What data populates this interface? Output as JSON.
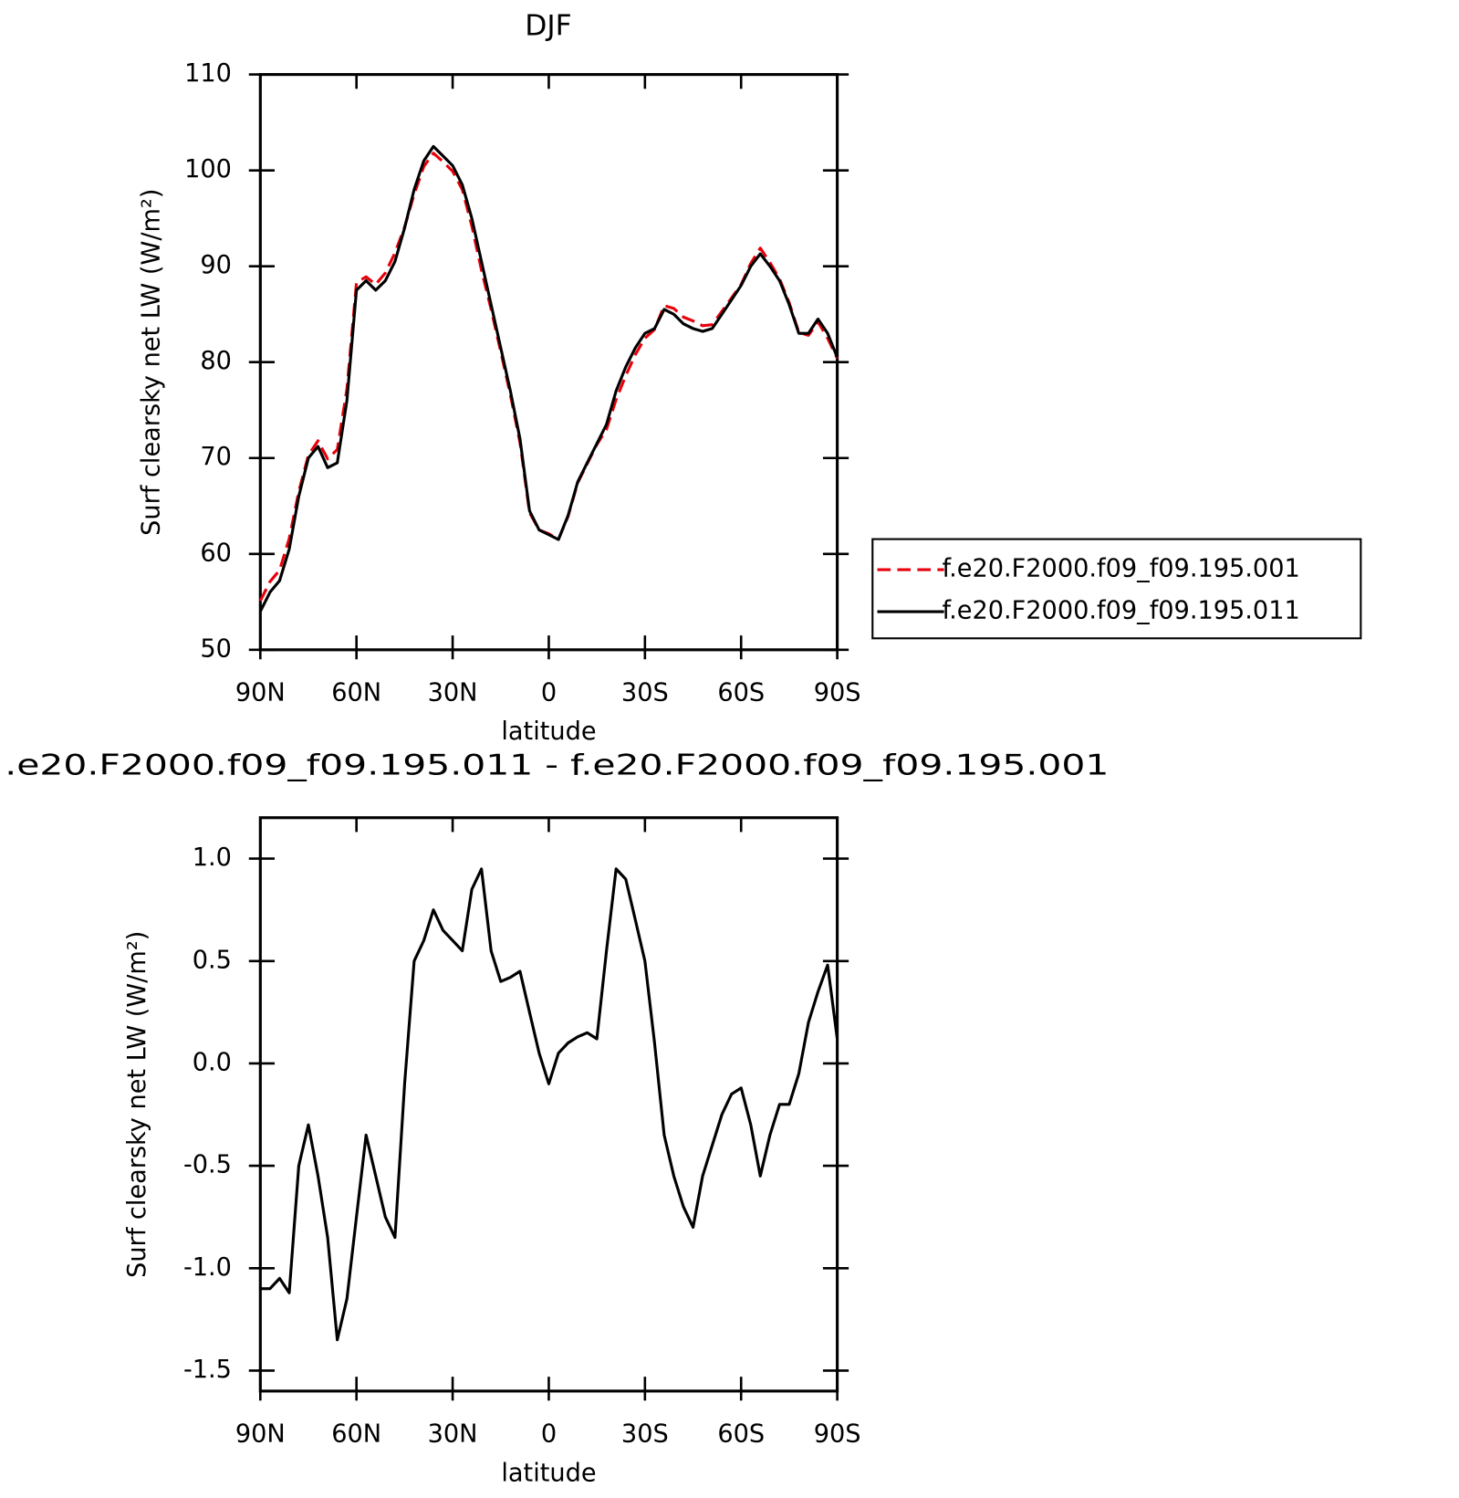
{
  "chart_data": [
    {
      "type": "line",
      "title": "DJF",
      "xlabel": "latitude",
      "ylabel": "Surf clearsky net LW (W/m²)",
      "x": [
        90,
        87,
        84,
        81,
        78,
        75,
        72,
        69,
        66,
        63,
        60,
        57,
        54,
        51,
        48,
        45,
        42,
        39,
        36,
        33,
        30,
        27,
        24,
        21,
        18,
        15,
        12,
        9,
        6,
        3,
        0,
        -3,
        -6,
        -9,
        -12,
        -15,
        -18,
        -21,
        -24,
        -27,
        -30,
        -33,
        -36,
        -39,
        -42,
        -45,
        -48,
        -51,
        -54,
        -57,
        -60,
        -63,
        -66,
        -69,
        -72,
        -75,
        -78,
        -81,
        -84,
        -87,
        -90
      ],
      "series": [
        {
          "name": "f.e20.F2000.f09_f09.195.001",
          "color": "#e8000b",
          "linestyle": "dashed",
          "values": [
            55.1,
            57.1,
            58.3,
            61.6,
            66.5,
            70.3,
            71.8,
            69.9,
            70.9,
            77.2,
            88.3,
            88.9,
            88.1,
            89.3,
            91.4,
            94.1,
            97.5,
            100.4,
            101.8,
            100.9,
            99.9,
            98.0,
            94.2,
            89.6,
            85.5,
            81.1,
            76.6,
            71.6,
            64.3,
            62.5,
            62.1,
            61.5,
            63.9,
            67.4,
            69.4,
            71.4,
            73.0,
            76.1,
            78.6,
            80.8,
            82.5,
            83.4,
            85.9,
            85.6,
            84.7,
            84.3,
            83.8,
            83.9,
            85.3,
            86.7,
            88.1,
            90.3,
            91.9,
            90.4,
            88.7,
            86.2,
            83.1,
            82.8,
            84.2,
            82.5,
            80.4
          ]
        },
        {
          "name": "f.e20.F2000.f09_f09.195.011",
          "color": "#000000",
          "linestyle": "solid",
          "values": [
            54,
            56,
            57.2,
            60.5,
            66,
            70,
            71.2,
            69,
            69.5,
            76,
            87.5,
            88.5,
            87.5,
            88.5,
            90.5,
            94,
            98,
            101,
            102.5,
            101.5,
            100.5,
            98.5,
            95,
            90.5,
            86,
            81.5,
            77,
            72,
            64.5,
            62.5,
            62,
            61.5,
            64,
            67.5,
            69.5,
            71.5,
            73.5,
            77,
            79.5,
            81.5,
            83,
            83.5,
            85.5,
            85,
            84,
            83.5,
            83.2,
            83.5,
            85,
            86.5,
            88,
            90,
            91.3,
            90,
            88.5,
            86,
            83,
            83,
            84.5,
            83,
            80.5
          ]
        }
      ],
      "xlim": [
        90,
        -90
      ],
      "xticks": [
        {
          "value": 90,
          "label": "90N"
        },
        {
          "value": 60,
          "label": "60N"
        },
        {
          "value": 30,
          "label": "30N"
        },
        0,
        {
          "value": -30,
          "label": "30S"
        },
        {
          "value": -60,
          "label": "60S"
        },
        {
          "value": -90,
          "label": "90S"
        }
      ],
      "ylim": [
        50,
        110
      ],
      "yticks": [
        50,
        60,
        70,
        80,
        90,
        100,
        110
      ],
      "legend": "right"
    },
    {
      "type": "line",
      "title": ".e20.F2000.f09_f09.195.011 - f.e20.F2000.f09_f09.195.001",
      "xlabel": "latitude",
      "ylabel": "Surf clearsky net LW (W/m²)",
      "x": [
        90,
        87,
        84,
        81,
        78,
        75,
        72,
        69,
        66,
        63,
        60,
        57,
        54,
        51,
        48,
        45,
        42,
        39,
        36,
        33,
        30,
        27,
        24,
        21,
        18,
        15,
        12,
        9,
        6,
        3,
        0,
        -3,
        -6,
        -9,
        -12,
        -15,
        -18,
        -21,
        -24,
        -27,
        -30,
        -33,
        -36,
        -39,
        -42,
        -45,
        -48,
        -51,
        -54,
        -57,
        -60,
        -63,
        -66,
        -69,
        -72,
        -75,
        -78,
        -81,
        -84,
        -87,
        -90
      ],
      "values": [
        -1.1,
        -1.1,
        -1.05,
        -1.12,
        -0.5,
        -0.3,
        -0.55,
        -0.85,
        -1.35,
        -1.15,
        -0.75,
        -0.35,
        -0.55,
        -0.75,
        -0.85,
        -0.1,
        0.5,
        0.6,
        0.75,
        0.65,
        0.6,
        0.55,
        0.85,
        0.95,
        0.55,
        0.4,
        0.42,
        0.45,
        0.25,
        0.05,
        -0.1,
        0.05,
        0.1,
        0.13,
        0.15,
        0.12,
        0.55,
        0.95,
        0.9,
        0.7,
        0.5,
        0.1,
        -0.35,
        -0.55,
        -0.7,
        -0.8,
        -0.55,
        -0.4,
        -0.25,
        -0.15,
        -0.12,
        -0.3,
        -0.55,
        -0.35,
        -0.2,
        -0.2,
        -0.05,
        0.2,
        0.35,
        0.48,
        0.12
      ],
      "color": "#000000",
      "xlim": [
        90,
        -90
      ],
      "xticks": [
        {
          "value": 90,
          "label": "90N"
        },
        {
          "value": 60,
          "label": "60N"
        },
        {
          "value": 30,
          "label": "30N"
        },
        0,
        {
          "value": -30,
          "label": "30S"
        },
        {
          "value": -60,
          "label": "60S"
        },
        {
          "value": -90,
          "label": "90S"
        }
      ],
      "ylim": [
        -1.6,
        1.2
      ],
      "yticks": [
        -1.5,
        {
          "value": -1,
          "label": "-1.0"
        },
        -0.5,
        {
          "value": 0,
          "label": "0.0"
        },
        0.5,
        {
          "value": 1,
          "label": "1.0"
        }
      ]
    }
  ]
}
